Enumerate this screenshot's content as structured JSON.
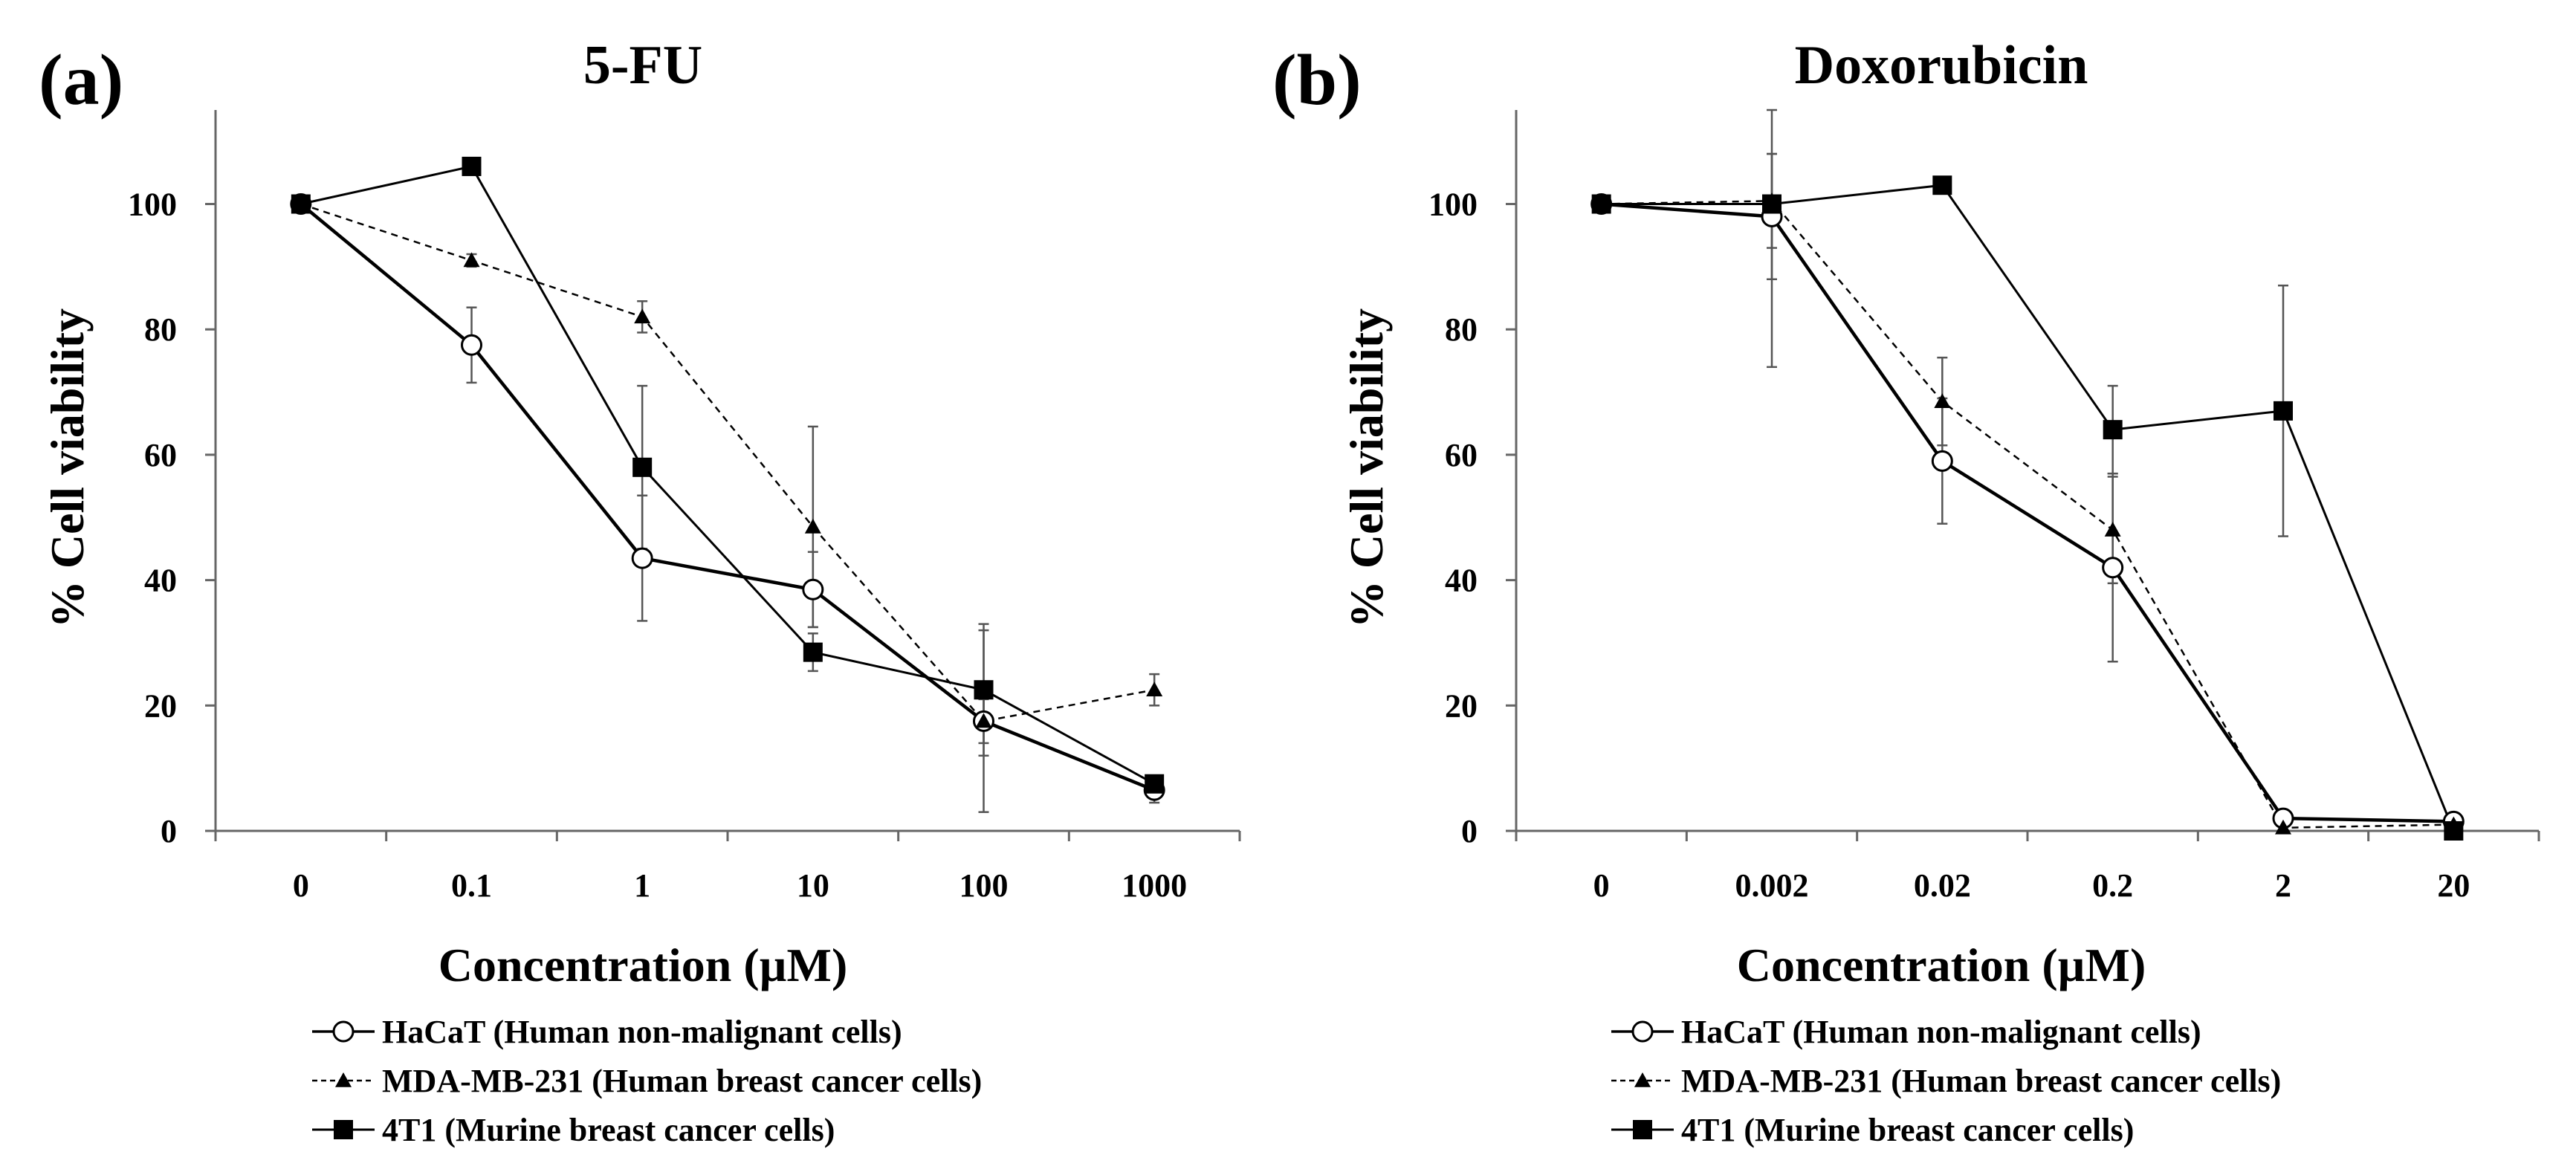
{
  "chart_data": [
    {
      "panel_label": "(a)",
      "type": "line",
      "title": "5-FU",
      "xlabel": "Concentration (µM)",
      "ylabel": "% Cell viability",
      "categories": [
        "0",
        "0.1",
        "1",
        "10",
        "100",
        "1000"
      ],
      "y_ticks": [
        "0",
        "20",
        "40",
        "60",
        "80",
        "100"
      ],
      "ylim": [
        0,
        115
      ],
      "legend": "below",
      "series": [
        {
          "name": "HaCaT (Human non-malignant cells)",
          "marker": "open-circle",
          "line": "solid-thick",
          "values": [
            100,
            77.5,
            43.5,
            38.5,
            17.5,
            6.5
          ],
          "errors": [
            0,
            6,
            10,
            6,
            14.5,
            2
          ]
        },
        {
          "name": "MDA-MB-231 (Human breast cancer cells)",
          "marker": "triangle",
          "line": "dashed",
          "values": [
            100,
            91,
            82,
            48.5,
            17.5,
            22.5
          ],
          "errors": [
            0,
            1,
            2.5,
            16,
            3.5,
            2.5
          ]
        },
        {
          "name": "4T1 (Murine breast cancer cells)",
          "marker": "square",
          "line": "solid",
          "values": [
            100,
            106,
            58,
            28.5,
            22.5,
            7.5
          ],
          "errors": [
            0,
            0,
            13,
            3,
            10.5,
            1
          ]
        }
      ]
    },
    {
      "panel_label": "(b)",
      "type": "line",
      "title": "Doxorubicin",
      "xlabel": "Concentration (µM)",
      "ylabel": "% Cell viability",
      "categories": [
        "0",
        "0.002",
        "0.02",
        "0.2",
        "2",
        "20"
      ],
      "y_ticks": [
        "0",
        "20",
        "40",
        "60",
        "80",
        "100"
      ],
      "ylim": [
        0,
        115
      ],
      "legend": "below",
      "series": [
        {
          "name": "HaCaT (Human non-malignant cells)",
          "marker": "open-circle",
          "line": "solid-thick",
          "values": [
            100,
            98,
            59,
            42,
            2,
            1.5
          ],
          "errors": [
            0,
            10,
            10,
            15,
            0,
            0
          ]
        },
        {
          "name": "MDA-MB-231 (Human breast cancer cells)",
          "marker": "triangle",
          "line": "dashed",
          "values": [
            100,
            100.5,
            68.5,
            48,
            0.5,
            1
          ],
          "errors": [
            0,
            7.5,
            7,
            8.5,
            0,
            0
          ]
        },
        {
          "name": "4T1 (Murine breast cancer cells)",
          "marker": "square",
          "line": "solid",
          "values": [
            100,
            100,
            103,
            64,
            67,
            0
          ],
          "errors": [
            0,
            26,
            0,
            7,
            20,
            0
          ]
        }
      ]
    }
  ]
}
